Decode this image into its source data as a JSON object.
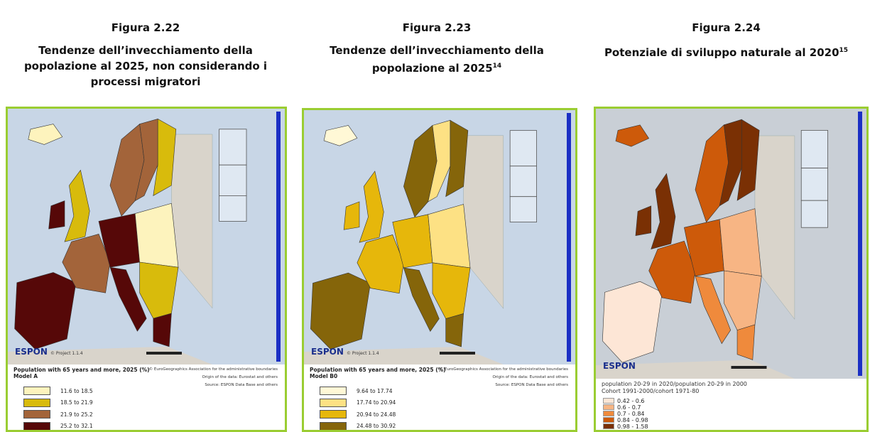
{
  "figures": [
    {
      "label": "Figura 2.22",
      "title": "Tendenze dell’invecchiamento della popolazione al 2025, non considerando i processi migratori",
      "map": {
        "logo": "ESPON",
        "project": "© Project 1.1.4",
        "legend_title": "Population with 65 years and more, 2025 (%)",
        "legend_subtitle": "Model A",
        "credits": [
          "© EuroGeographics Association for the administrative boundaries",
          "Origin of the data: Eurostat and others",
          "Source: ESPON Data Base and others"
        ],
        "legend": [
          {
            "label": "11.6 to 18.5",
            "color": "#fdf3bd"
          },
          {
            "label": "18.5 to 21.9",
            "color": "#d8bb0c"
          },
          {
            "label": "21.9 to 25.2",
            "color": "#a3643a"
          },
          {
            "label": "25.2 to 32.1",
            "color": "#560808"
          }
        ]
      }
    },
    {
      "label": "Figura 2.23",
      "title": "Tendenze dell’invecchiamento della popolazione al 2025",
      "title_sup": "14",
      "map": {
        "logo": "ESPON",
        "project": "© Project 1.1.4",
        "legend_title": "Population with 65 years and more, 2025 (%)",
        "legend_subtitle": "Model B0",
        "credits": [
          "© EuroGeographics Association for the administrative boundaries",
          "Origin of the data: Eurostat and others",
          "Source: ESPON Data Base and others"
        ],
        "legend": [
          {
            "label": "9.64 to 17.74",
            "color": "#fff8d6"
          },
          {
            "label": "17.74 to 20.94",
            "color": "#fde184"
          },
          {
            "label": "20.94 to 24.48",
            "color": "#e6b70b"
          },
          {
            "label": "24.48 to 30.92",
            "color": "#85650a"
          }
        ]
      }
    },
    {
      "label": "Figura 2.24",
      "title": "Potenziale di sviluppo naturale al 2020",
      "title_sup": "15",
      "map": {
        "logo": "ESPON",
        "legend_title": "population 20-29 in 2020/population 20-29 in 2000",
        "legend_subtitle": "Cohort 1991-2000/cohort 1971-80",
        "legend": [
          {
            "label": "0.42 - 0.6",
            "color": "#fde6d6"
          },
          {
            "label": "0.6 - 0.7",
            "color": "#f7b584"
          },
          {
            "label": "0.7 - 0.84",
            "color": "#ef8a3c"
          },
          {
            "label": "0.84 - 0.98",
            "color": "#cd5a0a"
          },
          {
            "label": "0.98 - 1.58",
            "color": "#7a3004"
          }
        ]
      }
    }
  ]
}
